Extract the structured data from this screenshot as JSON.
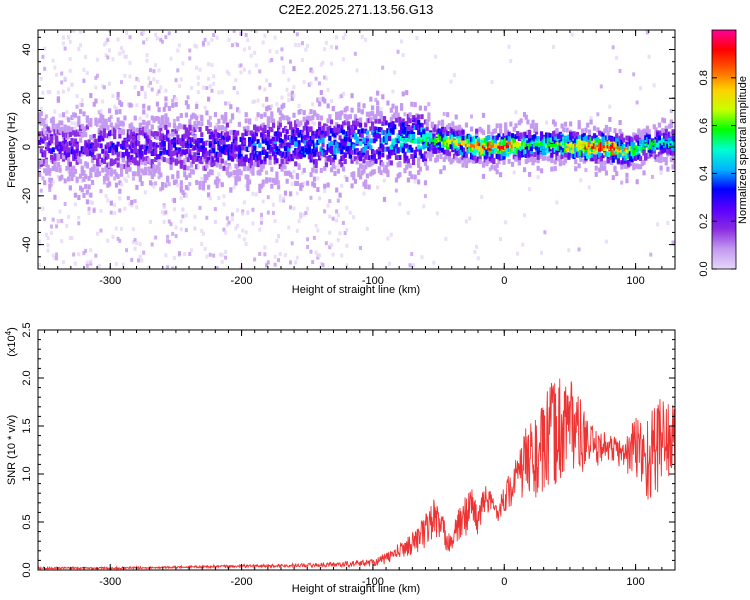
{
  "figure_title": "C2E2.2025.271.13.56.G13",
  "colors": {
    "snr_line": "#ee3333",
    "frame": "#000000",
    "background": "#ffffff"
  },
  "chart_data": [
    {
      "type": "heatmap",
      "title": "C2E2.2025.271.13.56.G13",
      "xlabel": "Height of straight line (km)",
      "ylabel": "Frequency (Hz)",
      "xlim": [
        -355,
        130
      ],
      "ylim": [
        -50,
        48
      ],
      "x_ticks": [
        -300,
        -200,
        -100,
        0,
        100
      ],
      "x_tick_labels": [
        "-300",
        "-200",
        "-100",
        "0",
        "100"
      ],
      "y_ticks": [
        -40,
        -20,
        0,
        20,
        40
      ],
      "y_tick_labels": [
        "-40",
        "-20",
        "0",
        "20",
        "40"
      ],
      "colorbar": {
        "label": "Normalized spectral amplitude",
        "range": [
          0,
          1
        ],
        "ticks": [
          0.0,
          0.2,
          0.4,
          0.6,
          0.8
        ],
        "tick_labels": [
          "0.0",
          "0.2",
          "0.4",
          "0.6",
          "0.8"
        ],
        "colormap": [
          "#e6d6f8",
          "#c49af0",
          "#8a2be2",
          "#5a00ff",
          "#0000ff",
          "#00b4ff",
          "#00ffd0",
          "#00ff00",
          "#c8ff00",
          "#ffd000",
          "#ff6000",
          "#ff0000",
          "#ff0099"
        ]
      },
      "ridge": {
        "description_points_x": [
          -355,
          -300,
          -250,
          -200,
          -150,
          -100,
          -60,
          -40,
          -30,
          -20,
          -10,
          0,
          20,
          40,
          60,
          80,
          90,
          100,
          110,
          130
        ],
        "center_freq": [
          0,
          0,
          0,
          0,
          1,
          2,
          3,
          2,
          1,
          0,
          0,
          0,
          1,
          1,
          0,
          0,
          -2,
          -1,
          1,
          2
        ],
        "peak_amplitude": [
          0.3,
          0.35,
          0.35,
          0.4,
          0.45,
          0.5,
          0.6,
          0.75,
          0.85,
          0.9,
          0.92,
          0.95,
          0.6,
          0.7,
          0.9,
          0.95,
          0.85,
          0.6,
          0.6,
          0.55
        ]
      }
    },
    {
      "type": "line",
      "xlabel": "Height of straight line (km)",
      "ylabel": "SNR (10 * v/v)",
      "y_multiplier_label": "(x10",
      "y_multiplier_exp": "4",
      "y_multiplier_close": ")",
      "xlim": [
        -355,
        130
      ],
      "ylim": [
        0,
        2.5
      ],
      "x_ticks": [
        -300,
        -200,
        -100,
        0,
        100
      ],
      "x_tick_labels": [
        "-300",
        "-200",
        "-100",
        "0",
        "100"
      ],
      "y_ticks": [
        0.0,
        0.5,
        1.0,
        1.5,
        2.0,
        2.5
      ],
      "y_tick_labels": [
        "0.0",
        "0.5",
        "1.0",
        "1.5",
        "2.0",
        "2.5"
      ],
      "series": [
        {
          "name": "SNR",
          "x": [
            -355,
            -300,
            -250,
            -200,
            -150,
            -120,
            -100,
            -90,
            -80,
            -70,
            -60,
            -55,
            -50,
            -45,
            -40,
            -35,
            -30,
            -25,
            -20,
            -15,
            -10,
            -5,
            0,
            5,
            10,
            15,
            20,
            25,
            30,
            35,
            40,
            45,
            50,
            55,
            60,
            65,
            70,
            75,
            80,
            85,
            90,
            95,
            100,
            105,
            110,
            115,
            120,
            125,
            130
          ],
          "y": [
            0.02,
            0.02,
            0.03,
            0.04,
            0.05,
            0.06,
            0.08,
            0.12,
            0.2,
            0.28,
            0.4,
            0.55,
            0.5,
            0.35,
            0.3,
            0.45,
            0.55,
            0.7,
            0.5,
            0.75,
            0.7,
            0.6,
            0.75,
            0.85,
            0.95,
            1.1,
            1.2,
            1.15,
            1.25,
            1.4,
            1.45,
            1.5,
            1.6,
            1.45,
            1.35,
            1.3,
            1.25,
            1.3,
            1.28,
            1.25,
            1.2,
            1.22,
            1.3,
            1.2,
            1.15,
            1.25,
            1.4,
            1.35,
            1.3
          ],
          "noise_amplitude": [
            0.01,
            0.01,
            0.01,
            0.015,
            0.02,
            0.03,
            0.04,
            0.06,
            0.08,
            0.12,
            0.18,
            0.25,
            0.2,
            0.15,
            0.12,
            0.18,
            0.22,
            0.2,
            0.15,
            0.15,
            0.12,
            0.1,
            0.15,
            0.2,
            0.25,
            0.35,
            0.4,
            0.45,
            0.5,
            0.55,
            0.6,
            0.55,
            0.5,
            0.45,
            0.35,
            0.25,
            0.2,
            0.15,
            0.15,
            0.15,
            0.15,
            0.25,
            0.35,
            0.45,
            0.5,
            0.5,
            0.5,
            0.45,
            0.4
          ]
        }
      ]
    }
  ]
}
